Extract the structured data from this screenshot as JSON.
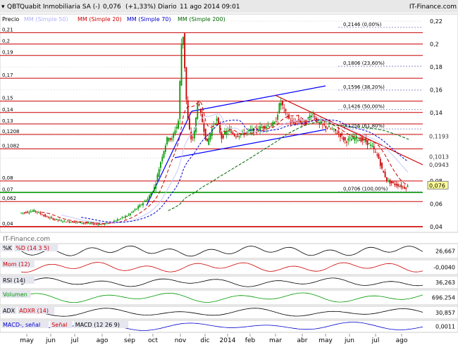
{
  "header": {
    "ticker": "QBT",
    "name": "Quabit Inmobiliaria SA (-)",
    "last": "0,076",
    "change": "(+1,33%)",
    "period": "Diario",
    "date": "11 ago 2014 09:01",
    "brand": "IT-Finance.com"
  },
  "legend": {
    "price_label": "Precio",
    "ma50": "MM (Simple 50)",
    "ma20": "MM (Simple 20)",
    "ma70": "MM (Simple 70)",
    "ma200": "MM (Simple 200)"
  },
  "colors": {
    "ma50": "#c8c8ff",
    "ma20": "#cc0000",
    "ma70": "#0000cc",
    "ma200": "#006600",
    "candle_up": "#009900",
    "candle_down": "#cc0000",
    "hline": "#cc0000",
    "support": "#009900",
    "trend": "#0000ff",
    "fib": "#9999cc",
    "current": "#ffff99"
  },
  "watermark": "IT-Finance.com",
  "chart_data": {
    "type": "candlestick",
    "x_labels": [
      "may",
      "jun",
      "jul",
      "ago",
      "sep",
      "oct",
      "nov",
      "dic",
      "2014",
      "feb",
      "mar",
      "abr",
      "may",
      "jun",
      "jul",
      "ago"
    ],
    "y_ticks": [
      "0,22",
      "0,2",
      "0,18",
      "0,16",
      "0,14",
      "0,12",
      "0,1",
      "0,08",
      "0,06",
      "0,04"
    ],
    "y_range": [
      0.035,
      0.225
    ],
    "horizontal_levels": [
      {
        "value": 0.21,
        "label": "0,21"
      },
      {
        "value": 0.2,
        "label": "0,2"
      },
      {
        "value": 0.19,
        "label": "0,19"
      },
      {
        "value": 0.17,
        "label": "0,17"
      },
      {
        "value": 0.15,
        "label": "0,15"
      },
      {
        "value": 0.14,
        "label": "0,14"
      },
      {
        "value": 0.13,
        "label": "0,13"
      },
      {
        "value": 0.1208,
        "label": "0,1208"
      },
      {
        "value": 0.1082,
        "label": "0,1082"
      },
      {
        "value": 0.08,
        "label": "0,08"
      },
      {
        "value": 0.07,
        "label": "0,07"
      },
      {
        "value": 0.062,
        "label": "0,062"
      },
      {
        "value": 0.04,
        "label": "0,04"
      }
    ],
    "right_markers": [
      {
        "value": 0.1193,
        "label": "0,1193"
      },
      {
        "value": 0.1013,
        "label": "0,1013"
      },
      {
        "value": 0.0943,
        "label": "0,0943"
      },
      {
        "value": 0.076,
        "label": "0,076"
      }
    ],
    "fibonacci": [
      {
        "value": 0.2146,
        "label": "0,2146 (0,00%)"
      },
      {
        "value": 0.1806,
        "label": "0,1806 (23,60%)"
      },
      {
        "value": 0.1596,
        "label": "0,1596 (38,20%)"
      },
      {
        "value": 0.1426,
        "label": "0,1426 (50,00%)"
      },
      {
        "value": 0.1256,
        "label": "0,1256 (61,80%)"
      },
      {
        "value": 0.0706,
        "label": "0,0706 (100,00%)"
      }
    ],
    "close_path": [
      [
        0,
        0.052
      ],
      [
        20,
        0.054
      ],
      [
        40,
        0.048
      ],
      [
        60,
        0.045
      ],
      [
        80,
        0.044
      ],
      [
        100,
        0.043
      ],
      [
        120,
        0.042
      ],
      [
        140,
        0.045
      ],
      [
        160,
        0.05
      ],
      [
        175,
        0.057
      ],
      [
        190,
        0.065
      ],
      [
        200,
        0.075
      ],
      [
        206,
        0.09
      ],
      [
        210,
        0.1
      ],
      [
        215,
        0.11
      ],
      [
        220,
        0.12
      ],
      [
        225,
        0.115
      ],
      [
        230,
        0.125
      ],
      [
        235,
        0.13
      ],
      [
        240,
        0.2
      ],
      [
        243,
        0.21
      ],
      [
        246,
        0.16
      ],
      [
        250,
        0.13
      ],
      [
        255,
        0.115
      ],
      [
        260,
        0.125
      ],
      [
        264,
        0.15
      ],
      [
        268,
        0.14
      ],
      [
        272,
        0.13
      ],
      [
        278,
        0.112
      ],
      [
        285,
        0.125
      ],
      [
        292,
        0.135
      ],
      [
        300,
        0.118
      ],
      [
        310,
        0.125
      ],
      [
        320,
        0.12
      ],
      [
        335,
        0.122
      ],
      [
        350,
        0.125
      ],
      [
        365,
        0.128
      ],
      [
        380,
        0.13
      ],
      [
        388,
        0.15
      ],
      [
        395,
        0.14
      ],
      [
        405,
        0.13
      ],
      [
        415,
        0.133
      ],
      [
        425,
        0.13
      ],
      [
        435,
        0.14
      ],
      [
        445,
        0.13
      ],
      [
        455,
        0.128
      ],
      [
        465,
        0.125
      ],
      [
        475,
        0.122
      ],
      [
        485,
        0.115
      ],
      [
        500,
        0.118
      ],
      [
        515,
        0.115
      ],
      [
        525,
        0.11
      ],
      [
        535,
        0.1
      ],
      [
        540,
        0.09
      ],
      [
        548,
        0.08
      ],
      [
        555,
        0.078
      ],
      [
        565,
        0.076
      ],
      [
        575,
        0.074
      ],
      [
        580,
        0.076
      ]
    ]
  },
  "panels": [
    {
      "id": "stoch",
      "labels": [
        "%K",
        "%D (14 3 5)"
      ],
      "value": "26,667"
    },
    {
      "id": "mom",
      "labels": [
        "Mom (12)"
      ],
      "value": "-0,0040"
    },
    {
      "id": "rsi",
      "labels": [
        "RSI (14)"
      ],
      "value": "36,263"
    },
    {
      "id": "vol",
      "labels": [
        "Volumen"
      ],
      "value": "696.254"
    },
    {
      "id": "adx",
      "labels": [
        "ADX",
        "ADXR (14)"
      ],
      "value": "30,857"
    },
    {
      "id": "macd",
      "labels": [
        "MACD-, señal",
        "Señal",
        "MACD (12 26 9)"
      ],
      "value": "0,0011"
    }
  ]
}
